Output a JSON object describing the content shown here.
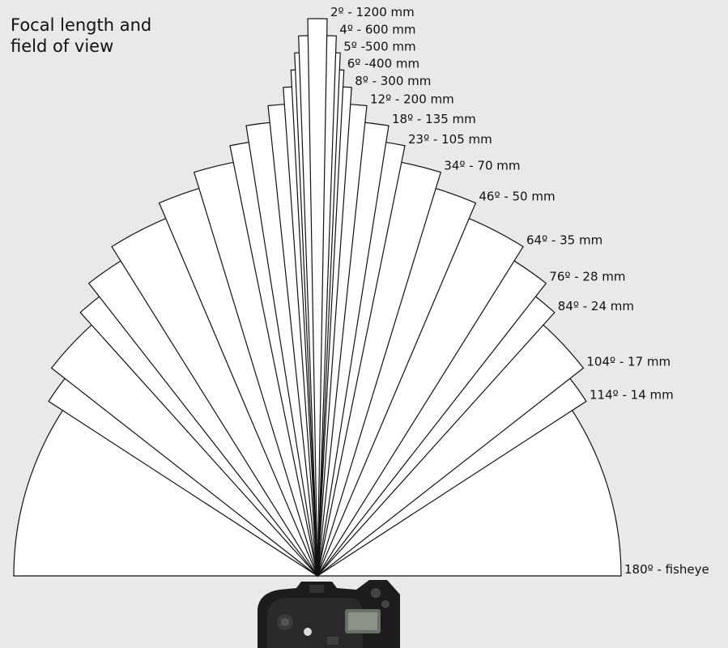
{
  "title": {
    "line1": "Focal length and",
    "line2": "field of view"
  },
  "colors": {
    "background": "#e9e9e7",
    "wedge_fill": "#ffffff",
    "outline": "#111111"
  },
  "lenses": [
    {
      "angle": 180,
      "label": "180º - fisheye"
    },
    {
      "angle": 114,
      "label": "114º - 14 mm"
    },
    {
      "angle": 104,
      "label": "104º - 17 mm"
    },
    {
      "angle": 84,
      "label": "84º - 24 mm"
    },
    {
      "angle": 76,
      "label": "76º - 28 mm"
    },
    {
      "angle": 64,
      "label": "64º - 35 mm"
    },
    {
      "angle": 46,
      "label": "46º - 50 mm"
    },
    {
      "angle": 34,
      "label": "34º - 70 mm"
    },
    {
      "angle": 23,
      "label": "23º - 105 mm"
    },
    {
      "angle": 18,
      "label": "18º - 135 mm"
    },
    {
      "angle": 12,
      "label": "12º - 200 mm"
    },
    {
      "angle": 8,
      "label": "8º - 300 mm"
    },
    {
      "angle": 6,
      "label": "6º -400 mm"
    },
    {
      "angle": 5,
      "label": "5º -500 mm"
    },
    {
      "angle": 4,
      "label": "4º - 600 mm"
    },
    {
      "angle": 2,
      "label": "2º - 1200 mm"
    }
  ],
  "camera": {
    "icon": "camera-icon"
  }
}
